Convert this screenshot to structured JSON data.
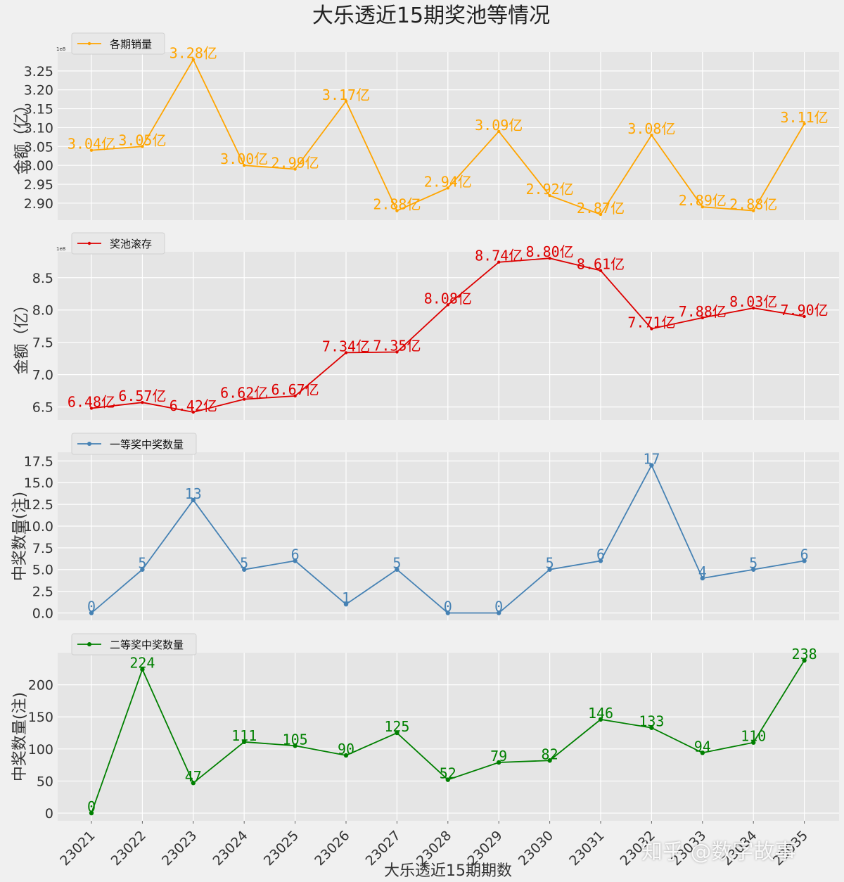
{
  "title": "大乐透近15期奖池等情况",
  "xlabel": "大乐透近15期期数",
  "watermark": "知乎 @数字故事",
  "chart_data": [
    {
      "type": "line",
      "name": "各期销量",
      "ylabel": "金额（亿）",
      "scale_note": "1e8",
      "color": "#FFA500",
      "label_suffix": "亿",
      "label_decimals": 2,
      "categories": [
        "23021",
        "23022",
        "23023",
        "23024",
        "23025",
        "23026",
        "23027",
        "23028",
        "23029",
        "23030",
        "23031",
        "23032",
        "23033",
        "23034",
        "23035"
      ],
      "values": [
        3.04,
        3.05,
        3.28,
        3.0,
        2.99,
        3.17,
        2.88,
        2.94,
        3.09,
        2.92,
        2.87,
        3.08,
        2.89,
        2.88,
        3.11
      ],
      "yticks": [
        2.9,
        2.95,
        3.0,
        3.05,
        3.1,
        3.15,
        3.2,
        3.25
      ],
      "ytick_labels": [
        "2.90",
        "2.95",
        "3.00",
        "3.05",
        "3.10",
        "3.15",
        "3.20",
        "3.25"
      ],
      "ylim": [
        2.855,
        3.3
      ],
      "legend": "top-left",
      "grid": true
    },
    {
      "type": "line",
      "name": "奖池滚存",
      "ylabel": "金额（亿）",
      "scale_note": "1e8",
      "color": "#DD0000",
      "label_suffix": "亿",
      "label_decimals": 2,
      "categories": [
        "23021",
        "23022",
        "23023",
        "23024",
        "23025",
        "23026",
        "23027",
        "23028",
        "23029",
        "23030",
        "23031",
        "23032",
        "23033",
        "23034",
        "23035"
      ],
      "values": [
        6.48,
        6.57,
        6.42,
        6.62,
        6.67,
        7.34,
        7.35,
        8.08,
        8.74,
        8.8,
        8.61,
        7.71,
        7.88,
        8.03,
        7.9
      ],
      "yticks": [
        6.5,
        7.0,
        7.5,
        8.0,
        8.5
      ],
      "ytick_labels": [
        "6.5",
        "7.0",
        "7.5",
        "8.0",
        "8.5"
      ],
      "ylim": [
        6.3,
        8.9
      ],
      "legend": "top-left",
      "grid": true
    },
    {
      "type": "line",
      "name": "一等奖中奖数量",
      "ylabel": "中奖数量(注)",
      "color": "#4682B4",
      "label_suffix": "",
      "label_decimals": 0,
      "categories": [
        "23021",
        "23022",
        "23023",
        "23024",
        "23025",
        "23026",
        "23027",
        "23028",
        "23029",
        "23030",
        "23031",
        "23032",
        "23033",
        "23034",
        "23035"
      ],
      "values": [
        0,
        5,
        13,
        5,
        6,
        1,
        5,
        0,
        0,
        5,
        6,
        17,
        4,
        5,
        6
      ],
      "yticks": [
        0,
        2.5,
        5,
        7.5,
        10,
        12.5,
        15,
        17.5
      ],
      "ytick_labels": [
        "0.0",
        "2.5",
        "5.0",
        "7.5",
        "10.0",
        "12.5",
        "15.0",
        "17.5"
      ],
      "ylim": [
        -0.85,
        18.5
      ],
      "legend": "top-left",
      "grid": true
    },
    {
      "type": "line",
      "name": "二等奖中奖数量",
      "ylabel": "中奖数量(注)",
      "color": "#008000",
      "label_suffix": "",
      "label_decimals": 0,
      "categories": [
        "23021",
        "23022",
        "23023",
        "23024",
        "23025",
        "23026",
        "23027",
        "23028",
        "23029",
        "23030",
        "23031",
        "23032",
        "23033",
        "23034",
        "23035"
      ],
      "values": [
        0,
        224,
        47,
        111,
        105,
        90,
        125,
        52,
        79,
        82,
        146,
        133,
        94,
        110,
        238
      ],
      "yticks": [
        0,
        50,
        100,
        150,
        200
      ],
      "ytick_labels": [
        "0",
        "50",
        "100",
        "150",
        "200"
      ],
      "ylim": [
        -12,
        250
      ],
      "legend": "top-left",
      "grid": true
    }
  ]
}
